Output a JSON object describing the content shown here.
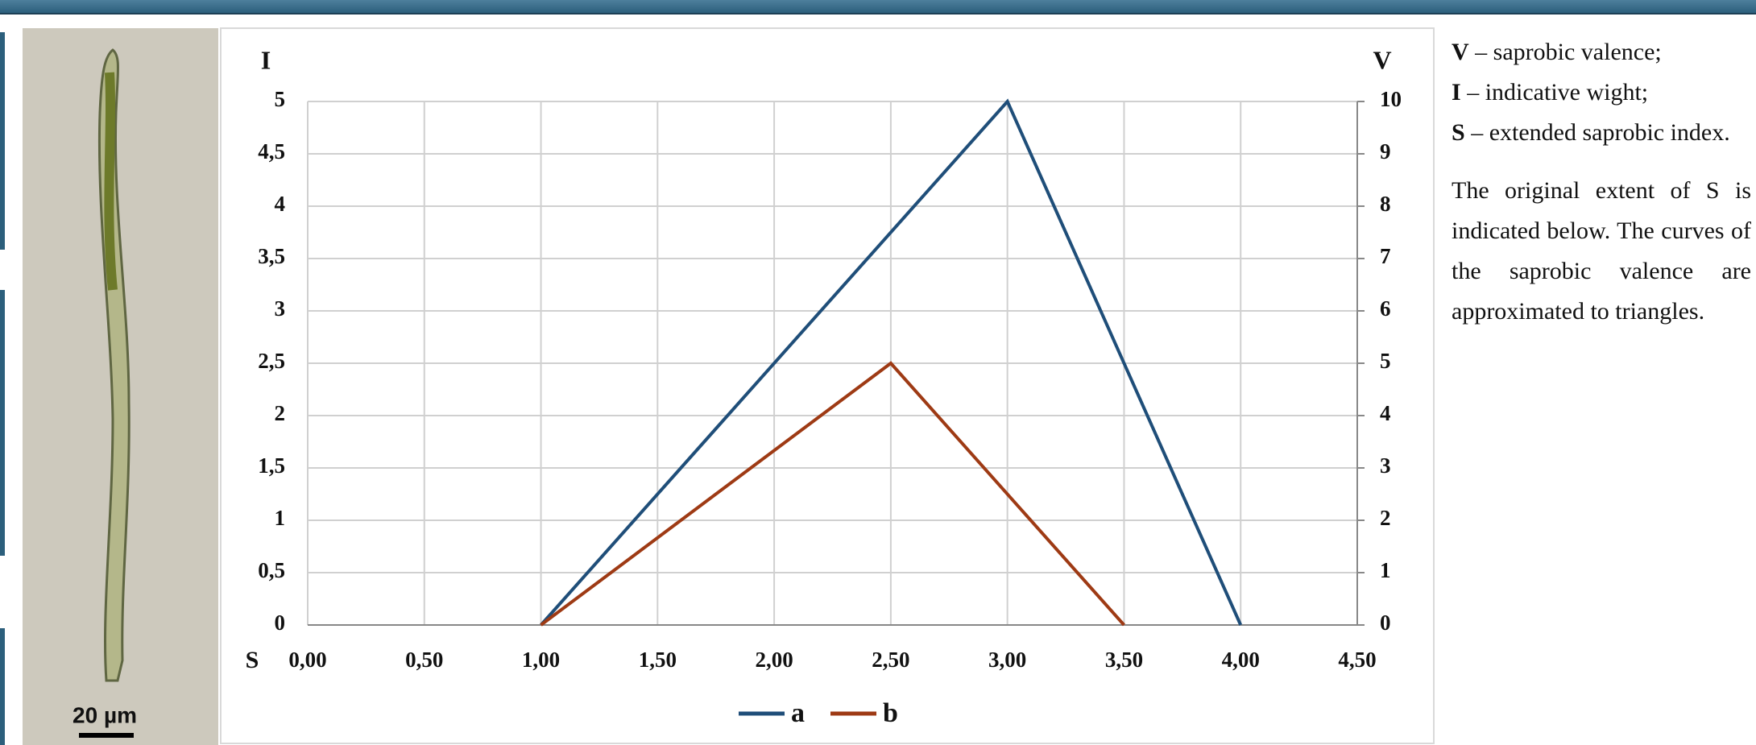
{
  "photo": {
    "scale_label": "20 µm"
  },
  "chart_data": {
    "type": "line",
    "ylabel": "I",
    "y2label": "V",
    "xlabel": "S",
    "xlim": [
      0,
      4.5
    ],
    "xticks": [
      {
        "value": 0,
        "label": "0,00"
      },
      {
        "value": 0.5,
        "label": "0,50"
      },
      {
        "value": 1,
        "label": "1,00"
      },
      {
        "value": 1.5,
        "label": "1,50"
      },
      {
        "value": 2,
        "label": "2,00"
      },
      {
        "value": 2.5,
        "label": "2,50"
      },
      {
        "value": 3,
        "label": "3,00"
      },
      {
        "value": 3.5,
        "label": "3,50"
      },
      {
        "value": 4,
        "label": "4,00"
      },
      {
        "value": 4.5,
        "label": "4,50"
      }
    ],
    "ylim": [
      0,
      5
    ],
    "yticks": [
      0,
      {
        "value": 0.5,
        "label": "0,5"
      },
      1,
      {
        "value": 1.5,
        "label": "1,5"
      },
      2,
      {
        "value": 2.5,
        "label": "2,5"
      },
      3,
      {
        "value": 3.5,
        "label": "3,5"
      },
      4,
      {
        "value": 4.5,
        "label": "4,5"
      },
      5
    ],
    "y2lim": [
      0,
      10
    ],
    "y2ticks": [
      0,
      1,
      2,
      3,
      4,
      5,
      6,
      7,
      8,
      9,
      10
    ],
    "grid": true,
    "legend": "bottom",
    "series": [
      {
        "name": "a",
        "color": "#1f4e79",
        "x": [
          1,
          3,
          4
        ],
        "values": [
          0,
          5,
          0
        ]
      },
      {
        "name": "b",
        "color": "#9e3a14",
        "x": [
          1,
          2.5,
          3.5
        ],
        "values": [
          0,
          2.5,
          0
        ]
      }
    ]
  },
  "notes": {
    "items": [
      {
        "symbol": "V",
        "text": "– saprobic valence;"
      },
      {
        "symbol": "I",
        "text": "– indicative wight;"
      },
      {
        "symbol": "S",
        "text": "– extended saprobic index."
      }
    ],
    "paragraph": "The original extent of S is indicated below. The curves of the saprobic valence are approximated to triangles."
  }
}
